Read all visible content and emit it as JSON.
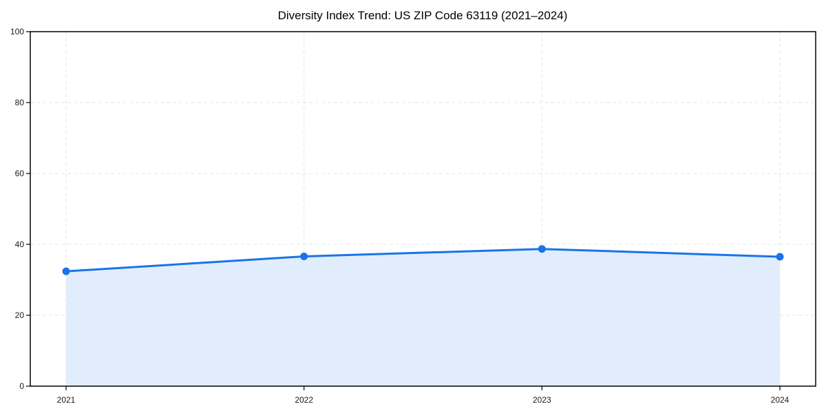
{
  "chart_data": {
    "type": "area",
    "title": "Diversity Index Trend: US ZIP Code 63119 (2021–2024)",
    "x": [
      2021,
      2022,
      2023,
      2024
    ],
    "x_tick_labels": [
      "2021",
      "2022",
      "2023",
      "2024"
    ],
    "series": [
      {
        "name": "Diversity Index",
        "values": [
          32.4,
          36.6,
          38.7,
          36.5
        ]
      }
    ],
    "xlabel": "",
    "ylabel": "",
    "ylim": [
      0,
      100
    ],
    "y_ticks": [
      0,
      20,
      40,
      60,
      80,
      100
    ],
    "grid": "dashed",
    "legend_position": "none",
    "colors": {
      "line": "#1a73e8",
      "marker": "#1a73e8",
      "area_fill": "rgba(26,115,232,0.13)",
      "gridline": "#e6e6e6",
      "spine": "#000000",
      "tick_label": "#1a1a1a",
      "background": "#ffffff"
    }
  }
}
